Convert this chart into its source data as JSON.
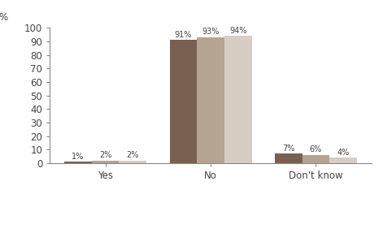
{
  "categories": [
    "Yes",
    "No",
    "Don't know"
  ],
  "series": {
    "District health boards": [
      1,
      91,
      7
    ],
    "Central government": [
      2,
      93,
      6
    ],
    "All public entities": [
      2,
      94,
      4
    ]
  },
  "colors": {
    "District health boards": "#7a6050",
    "Central government": "#b5a492",
    "All public entities": "#d6cec4"
  },
  "ylim": [
    0,
    100
  ],
  "yticks": [
    0,
    10,
    20,
    30,
    40,
    50,
    60,
    70,
    80,
    90,
    100
  ],
  "bar_width": 0.26,
  "label_fontsize": 7.0,
  "axis_fontsize": 8.5,
  "legend_fontsize": 7.5,
  "background_color": "#ffffff",
  "value_labels": {
    "District health boards": [
      "1%",
      "91%",
      "7%"
    ],
    "Central government": [
      "2%",
      "93%",
      "6%"
    ],
    "All public entities": [
      "2%",
      "94%",
      "4%"
    ]
  },
  "spine_color": "#888888",
  "text_color": "#444444"
}
